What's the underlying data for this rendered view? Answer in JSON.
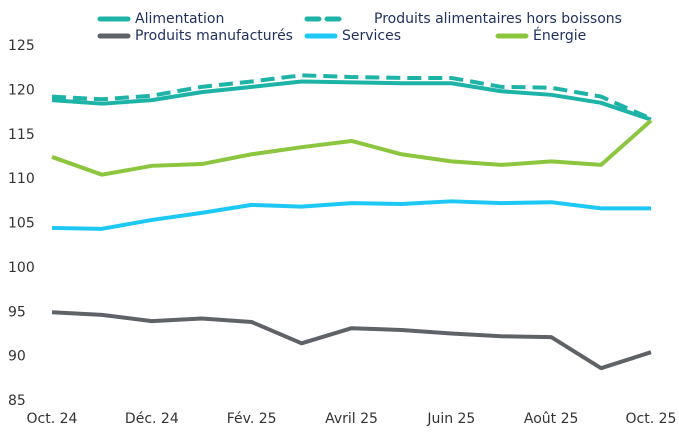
{
  "chart_data": {
    "type": "line",
    "categories": [
      "Oct. 24",
      null,
      "Déc. 24",
      null,
      "Fév. 25",
      null,
      "Avril 25",
      null,
      "Juin 25",
      null,
      "Août 25",
      null,
      "Oct. 25"
    ],
    "series": [
      {
        "name": "Alimentation",
        "color": "#1db3a6",
        "values": [
          118.9,
          118.5,
          118.9,
          119.8,
          120.4,
          121.0,
          120.9,
          120.8,
          120.8,
          119.9,
          119.5,
          118.6,
          116.7
        ]
      },
      {
        "name": "Produits alimentaires hors boissons",
        "color": "#1db3a6",
        "dashed": true,
        "values": [
          119.3,
          119.0,
          119.4,
          120.4,
          121.0,
          121.7,
          121.5,
          121.4,
          121.4,
          120.4,
          120.3,
          119.3,
          116.8
        ]
      },
      {
        "name": "Produits manufacturés",
        "color": "#5f6368",
        "values": [
          95.0,
          94.7,
          94.0,
          94.3,
          93.9,
          91.5,
          93.2,
          93.0,
          92.6,
          92.3,
          92.2,
          88.7,
          90.5
        ]
      },
      {
        "name": "Services",
        "color": "#1ec8f5",
        "values": [
          104.5,
          104.4,
          105.4,
          106.2,
          107.1,
          106.9,
          107.3,
          107.2,
          107.5,
          107.3,
          107.4,
          106.7,
          106.7
        ]
      },
      {
        "name": "Énergie",
        "color": "#8cc63f",
        "values": [
          112.5,
          110.5,
          111.5,
          111.7,
          112.8,
          113.6,
          114.3,
          112.8,
          112.0,
          111.6,
          112.0,
          111.6,
          116.6
        ]
      }
    ],
    "ylim": [
      85,
      125
    ],
    "yticks": [
      85,
      90,
      95,
      100,
      105,
      110,
      115,
      120,
      125
    ]
  }
}
